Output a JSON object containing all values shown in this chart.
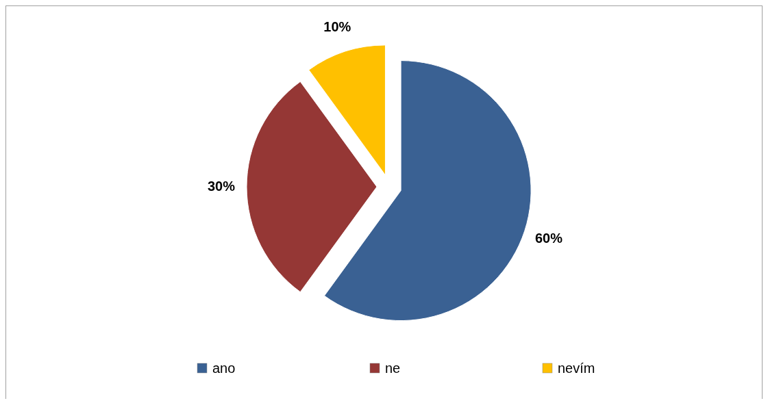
{
  "chart_data": {
    "type": "pie",
    "categories": [
      "ano",
      "ne",
      "nevím"
    ],
    "values": [
      60,
      30,
      10
    ],
    "colors": [
      "#3a6193",
      "#953735",
      "#ffc000"
    ],
    "value_labels": [
      "60%",
      "30%",
      "10%"
    ],
    "legend": "bottom"
  }
}
